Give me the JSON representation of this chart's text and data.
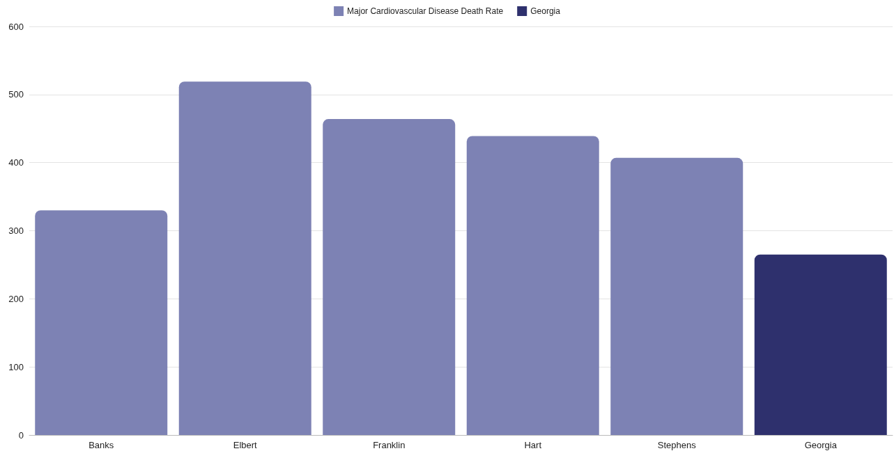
{
  "chart_data": {
    "type": "bar",
    "categories": [
      "Banks",
      "Elbert",
      "Franklin",
      "Hart",
      "Stephens",
      "Georgia"
    ],
    "series": [
      {
        "name": "Major Cardiovascular Disease Death Rate",
        "color": "#7d82b4",
        "values": [
          330,
          519,
          464,
          439,
          407,
          null
        ]
      },
      {
        "name": "Georgia",
        "color": "#2e306d",
        "values": [
          null,
          null,
          null,
          null,
          null,
          265
        ]
      }
    ],
    "stacked": true,
    "ylim": [
      0,
      600
    ],
    "yticks": [
      0,
      100,
      200,
      300,
      400,
      500,
      600
    ],
    "grid": "y",
    "legend": "top"
  }
}
